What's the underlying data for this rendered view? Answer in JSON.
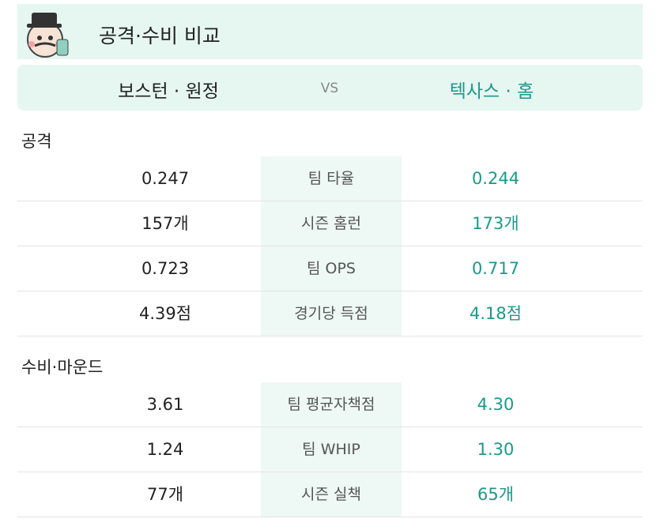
{
  "header": {
    "title": "공격·수비 비교"
  },
  "teams": {
    "away": "보스턴 · 원정",
    "vs": "VS",
    "home": "텍사스 · 홈"
  },
  "sections": [
    {
      "title": "공격",
      "rows": [
        {
          "away": "0.247",
          "label": "팀 타율",
          "home": "0.244"
        },
        {
          "away": "157개",
          "label": "시즌 홈런",
          "home": "173개"
        },
        {
          "away": "0.723",
          "label": "팀 OPS",
          "home": "0.717"
        },
        {
          "away": "4.39점",
          "label": "경기당 득점",
          "home": "4.18점"
        }
      ]
    },
    {
      "title": "수비·마운드",
      "rows": [
        {
          "away": "3.61",
          "label": "팀 평균자책점",
          "home": "4.30"
        },
        {
          "away": "1.24",
          "label": "팀 WHIP",
          "home": "1.30"
        },
        {
          "away": "77개",
          "label": "시즌 실책",
          "home": "65개"
        }
      ]
    }
  ]
}
